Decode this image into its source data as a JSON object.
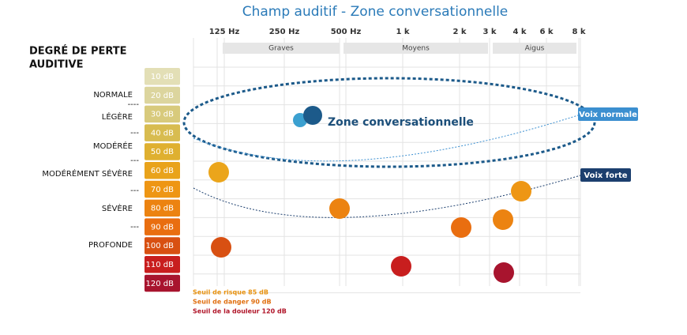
{
  "title": "Champ auditif - Zone conversationnelle",
  "frequencies": [
    "125 Hz",
    "250 Hz",
    "500 Hz",
    "1 k",
    "2 k",
    "3 k",
    "4 k",
    "6 k",
    "8 k"
  ],
  "bands": [
    "Graves",
    "Moyens",
    "Aigus"
  ],
  "heading": [
    "DEGRÉ DE PERTE",
    "AUDITIVE"
  ],
  "levels": [
    {
      "label": "10 dB",
      "color": "#e3dfb6"
    },
    {
      "label": "20 dB",
      "color": "#dcd59e"
    },
    {
      "label": "30 dB",
      "color": "#d8ca7c"
    },
    {
      "label": "40 dB",
      "color": "#d8bc50"
    },
    {
      "label": "50 dB",
      "color": "#dfb030"
    },
    {
      "label": "60 dB",
      "color": "#e9a31b"
    },
    {
      "label": "70 dB",
      "color": "#ee9614"
    },
    {
      "label": "80 dB",
      "color": "#ec8311"
    },
    {
      "label": "90 dB",
      "color": "#e96e10"
    },
    {
      "label": "100 dB",
      "color": "#d85012"
    },
    {
      "label": "110 dB",
      "color": "#c81e1e"
    },
    {
      "label": "120 dB",
      "color": "#a8142e"
    }
  ],
  "degrees": [
    "NORMALE",
    "LÉGÈRE",
    "MODÉRÉE",
    "MODÉRÉMENT SÉVÈRE",
    "SÉVÈRE",
    "PROFONDE"
  ],
  "separators": [
    "----",
    "---",
    "---",
    "---",
    "---"
  ],
  "zone_label": "Zone conversationnelle",
  "voices": [
    "Voix normale",
    "Voix forte"
  ],
  "thresholds": [
    {
      "label": "Seuil de risque 85 dB",
      "color": "#e8920f"
    },
    {
      "label": "Seuil de danger 90 dB",
      "color": "#e06f10"
    },
    {
      "label": "Seuil de la douleur 120 dB",
      "color": "#b01428"
    }
  ]
}
